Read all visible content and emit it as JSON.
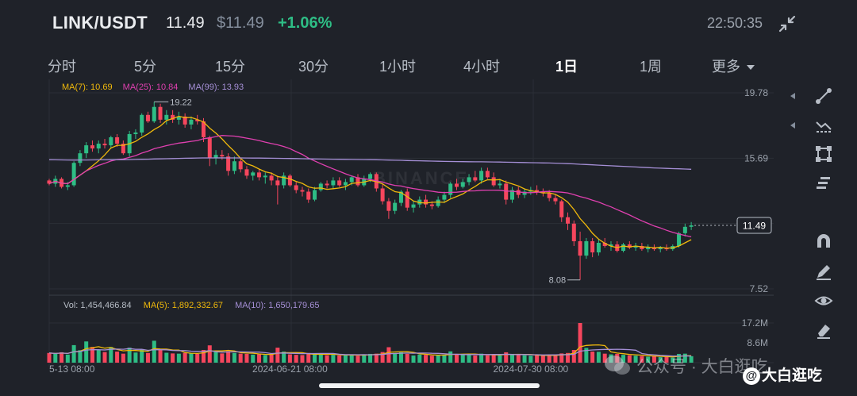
{
  "header": {
    "pair": "LINK/USDT",
    "last_price": "11.49",
    "usd_price": "$11.49",
    "change_pct": "+1.06%",
    "clock": "22:50:35"
  },
  "tabs": [
    {
      "label": "分时",
      "active": false
    },
    {
      "label": "5分",
      "active": false
    },
    {
      "label": "15分",
      "active": false
    },
    {
      "label": "30分",
      "active": false
    },
    {
      "label": "1小时",
      "active": false
    },
    {
      "label": "4小时",
      "active": false
    },
    {
      "label": "1日",
      "active": true
    },
    {
      "label": "1周",
      "active": false
    },
    {
      "label": "更多",
      "active": false
    }
  ],
  "ma_legend": [
    {
      "text": "MA(7): 10.69",
      "color": "#f0b90b"
    },
    {
      "text": "MA(25): 10.84",
      "color": "#e040b0"
    },
    {
      "text": "MA(99): 13.93",
      "color": "#a58fd6"
    }
  ],
  "vol_legend": [
    {
      "text": "Vol: 1,454,466.84",
      "color": "#b7bdc6"
    },
    {
      "text": "MA(5): 1,892,332.67",
      "color": "#f0b90b"
    },
    {
      "text": "MA(10): 1,650,179.65",
      "color": "#a58fd6"
    }
  ],
  "colors": {
    "up": "#2ebd85",
    "down": "#f6465d",
    "ma7": "#f0b90b",
    "ma25": "#e040b0",
    "ma99": "#a58fd6",
    "grid": "#2b2f36",
    "axis_text": "#9aa1ab"
  },
  "sidebar_tools": [
    "draw-line-icon",
    "indicator-icon",
    "crop-icon",
    "layers-icon",
    "magnet-icon",
    "eraser-pen-icon",
    "eye-icon",
    "delete-icon"
  ],
  "chart_data": {
    "type": "candlestick",
    "price_ticks": [
      "19.78",
      "15.69",
      "11.61",
      "7.52"
    ],
    "price_range": [
      7.52,
      19.78
    ],
    "current_price_label": "11.49",
    "annotations": {
      "high": "19.22",
      "low": "8.08"
    },
    "volume_ticks": [
      "17.2M",
      "8.6M"
    ],
    "volume_range": [
      0,
      17.2
    ],
    "x_labels": [
      {
        "index": 0,
        "label": "5-13 08:00"
      },
      {
        "index": 39,
        "label": "2024-06-21 08:00"
      },
      {
        "index": 78,
        "label": "2024-07-30 08:00"
      }
    ],
    "ohlc": [
      [
        14.3,
        14.4,
        14.0,
        14.1
      ],
      [
        14.1,
        14.6,
        13.9,
        14.4
      ],
      [
        14.4,
        14.5,
        13.8,
        13.9
      ],
      [
        13.9,
        14.2,
        13.7,
        14.0
      ],
      [
        14.0,
        15.5,
        13.9,
        15.4
      ],
      [
        15.4,
        16.2,
        15.2,
        16.0
      ],
      [
        16.0,
        16.7,
        15.7,
        16.5
      ],
      [
        16.5,
        16.8,
        16.1,
        16.3
      ],
      [
        16.3,
        16.8,
        16.0,
        16.6
      ],
      [
        16.6,
        16.9,
        16.3,
        16.5
      ],
      [
        16.5,
        17.1,
        16.3,
        17.0
      ],
      [
        17.0,
        17.2,
        16.4,
        16.6
      ],
      [
        16.6,
        16.8,
        15.9,
        16.0
      ],
      [
        16.0,
        17.4,
        15.8,
        17.2
      ],
      [
        17.2,
        17.5,
        16.9,
        17.3
      ],
      [
        17.3,
        18.5,
        17.1,
        18.4
      ],
      [
        18.4,
        18.6,
        17.9,
        18.0
      ],
      [
        18.0,
        19.22,
        17.9,
        18.9
      ],
      [
        18.9,
        19.1,
        17.9,
        18.1
      ],
      [
        18.1,
        18.7,
        17.8,
        18.4
      ],
      [
        18.4,
        18.7,
        17.9,
        18.1
      ],
      [
        18.1,
        18.6,
        17.8,
        18.3
      ],
      [
        18.3,
        18.5,
        17.6,
        17.8
      ],
      [
        17.8,
        18.3,
        17.5,
        18.1
      ],
      [
        18.1,
        18.4,
        17.8,
        18.0
      ],
      [
        18.0,
        18.2,
        16.7,
        17.0
      ],
      [
        17.0,
        17.1,
        15.2,
        15.7
      ],
      [
        15.7,
        16.2,
        15.3,
        15.9
      ],
      [
        15.9,
        16.2,
        15.6,
        15.8
      ],
      [
        15.8,
        16.0,
        14.6,
        14.9
      ],
      [
        14.9,
        15.8,
        14.7,
        15.5
      ],
      [
        15.5,
        15.7,
        14.8,
        15.0
      ],
      [
        15.0,
        15.2,
        14.4,
        14.6
      ],
      [
        14.6,
        14.9,
        14.3,
        14.8
      ],
      [
        14.8,
        15.0,
        14.3,
        14.5
      ],
      [
        14.5,
        14.8,
        14.1,
        14.6
      ],
      [
        14.6,
        14.8,
        14.0,
        14.3
      ],
      [
        14.3,
        14.6,
        12.8,
        14.0
      ],
      [
        14.0,
        14.8,
        13.8,
        14.6
      ],
      [
        14.6,
        14.7,
        13.9,
        14.0
      ],
      [
        14.0,
        14.2,
        13.5,
        13.7
      ],
      [
        13.7,
        13.9,
        13.3,
        13.6
      ],
      [
        13.6,
        13.8,
        12.9,
        13.1
      ],
      [
        13.1,
        13.9,
        13.0,
        13.7
      ],
      [
        13.7,
        14.2,
        13.6,
        14.1
      ],
      [
        14.1,
        14.3,
        13.8,
        14.0
      ],
      [
        14.0,
        14.5,
        13.8,
        14.3
      ],
      [
        14.3,
        14.5,
        13.9,
        14.0
      ],
      [
        14.0,
        14.4,
        13.7,
        14.2
      ],
      [
        14.2,
        14.6,
        14.0,
        14.5
      ],
      [
        14.5,
        14.7,
        13.9,
        14.0
      ],
      [
        14.0,
        14.6,
        13.9,
        14.4
      ],
      [
        14.4,
        14.8,
        14.2,
        14.7
      ],
      [
        14.7,
        14.8,
        13.6,
        13.8
      ],
      [
        13.8,
        14.1,
        12.8,
        13.0
      ],
      [
        13.0,
        13.2,
        11.9,
        12.4
      ],
      [
        12.4,
        13.1,
        12.2,
        12.9
      ],
      [
        12.9,
        13.7,
        12.7,
        13.6
      ],
      [
        13.6,
        13.8,
        12.4,
        12.6
      ],
      [
        12.6,
        13.0,
        12.3,
        12.8
      ],
      [
        12.8,
        13.3,
        12.6,
        13.1
      ],
      [
        13.1,
        13.4,
        12.6,
        12.8
      ],
      [
        12.8,
        13.0,
        12.5,
        12.7
      ],
      [
        12.7,
        13.3,
        12.6,
        13.1
      ],
      [
        13.1,
        13.6,
        12.9,
        13.4
      ],
      [
        13.4,
        14.2,
        13.2,
        14.1
      ],
      [
        14.1,
        14.4,
        13.7,
        13.9
      ],
      [
        13.9,
        14.4,
        13.8,
        14.2
      ],
      [
        14.2,
        14.7,
        14.0,
        14.5
      ],
      [
        14.5,
        14.9,
        14.2,
        14.3
      ],
      [
        14.3,
        15.1,
        14.1,
        14.9
      ],
      [
        14.9,
        15.1,
        14.4,
        14.5
      ],
      [
        14.5,
        14.8,
        13.9,
        14.0
      ],
      [
        14.0,
        14.4,
        13.8,
        14.1
      ],
      [
        14.1,
        14.3,
        12.8,
        13.1
      ],
      [
        13.1,
        13.9,
        12.9,
        13.7
      ],
      [
        13.7,
        13.9,
        13.2,
        13.4
      ],
      [
        13.4,
        13.8,
        13.2,
        13.6
      ],
      [
        13.6,
        13.9,
        13.4,
        13.7
      ],
      [
        13.7,
        14.0,
        13.4,
        13.6
      ],
      [
        13.6,
        13.8,
        13.3,
        13.5
      ],
      [
        13.5,
        13.7,
        13.0,
        13.2
      ],
      [
        13.2,
        13.4,
        12.8,
        13.0
      ],
      [
        13.0,
        13.1,
        11.7,
        12.0
      ],
      [
        12.0,
        12.3,
        11.2,
        11.6
      ],
      [
        11.6,
        11.8,
        10.2,
        10.5
      ],
      [
        10.5,
        11.1,
        8.08,
        9.6
      ],
      [
        9.6,
        10.7,
        9.4,
        10.5
      ],
      [
        10.5,
        10.7,
        9.5,
        9.8
      ],
      [
        9.8,
        10.6,
        9.6,
        10.4
      ],
      [
        10.4,
        10.7,
        10.1,
        10.2
      ],
      [
        10.2,
        10.5,
        9.9,
        10.3
      ],
      [
        10.3,
        10.5,
        9.8,
        9.9
      ],
      [
        9.9,
        10.4,
        9.8,
        10.3
      ],
      [
        10.3,
        10.5,
        10.0,
        10.1
      ],
      [
        10.1,
        10.4,
        9.9,
        10.2
      ],
      [
        10.2,
        10.4,
        9.9,
        10.0
      ],
      [
        10.0,
        10.3,
        9.8,
        10.1
      ],
      [
        10.1,
        10.3,
        9.9,
        10.0
      ],
      [
        10.0,
        10.2,
        9.8,
        10.1
      ],
      [
        10.1,
        10.3,
        9.9,
        10.0
      ],
      [
        10.0,
        10.3,
        9.9,
        10.2
      ],
      [
        10.2,
        11.1,
        10.1,
        11.0
      ],
      [
        11.0,
        11.6,
        10.8,
        11.4
      ],
      [
        11.4,
        11.7,
        11.2,
        11.49
      ]
    ],
    "volume": [
      4.2,
      3.8,
      4.5,
      3.5,
      7.6,
      5.4,
      9.2,
      6.8,
      5.5,
      4.6,
      6.8,
      4.8,
      3.9,
      6.5,
      4.4,
      5.8,
      4.2,
      9.5,
      5.6,
      4.3,
      4.0,
      3.9,
      4.2,
      4.0,
      3.8,
      5.5,
      7.5,
      4.6,
      4.0,
      5.0,
      4.2,
      3.9,
      3.8,
      3.5,
      3.6,
      3.3,
      3.5,
      6.5,
      4.8,
      3.6,
      3.4,
      3.3,
      4.2,
      3.5,
      3.9,
      3.2,
      3.4,
      3.1,
      3.3,
      3.6,
      3.0,
      3.4,
      3.8,
      3.9,
      4.6,
      6.7,
      4.2,
      4.5,
      3.8,
      3.1,
      3.5,
      3.4,
      3.0,
      3.3,
      3.2,
      4.9,
      3.6,
      3.4,
      3.6,
      3.1,
      3.9,
      3.2,
      3.3,
      3.1,
      4.5,
      3.8,
      3.3,
      3.2,
      3.0,
      3.1,
      3.0,
      3.4,
      3.3,
      4.0,
      4.2,
      5.5,
      17.2,
      6.4,
      4.8,
      4.7,
      3.9,
      3.6,
      3.8,
      3.4,
      3.2,
      3.0,
      2.9,
      2.6,
      2.8,
      2.4,
      2.5,
      2.2,
      3.8,
      3.9,
      2.8
    ]
  }
}
